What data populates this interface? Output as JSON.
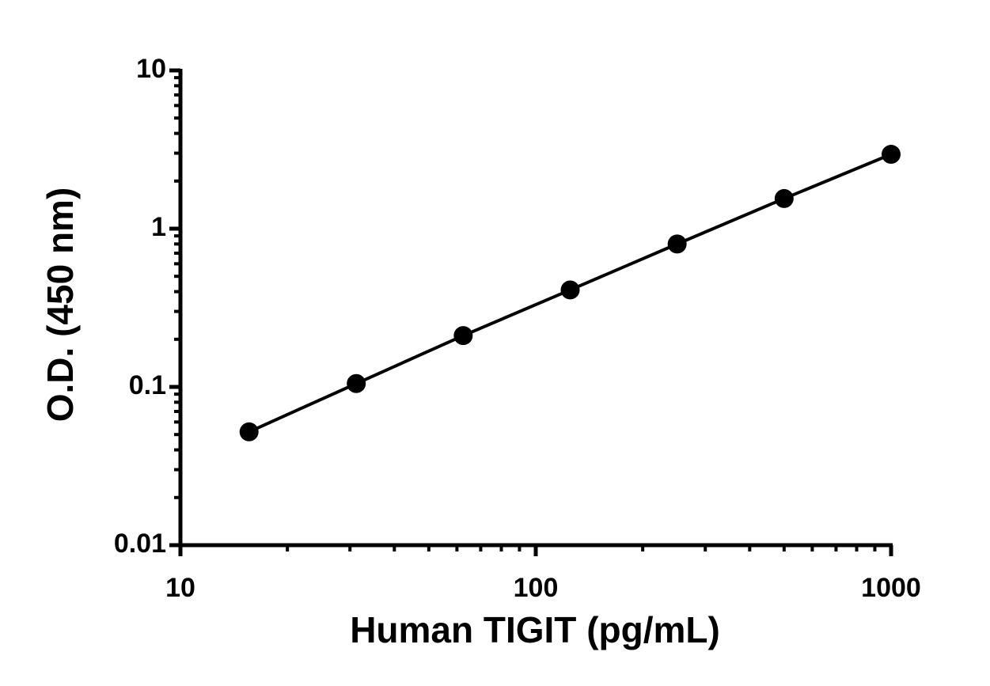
{
  "chart_data": {
    "type": "scatter",
    "x_label": "Human TIGIT (pg/mL)",
    "y_label": "O.D. (450 nm)",
    "x": [
      15.6,
      31.25,
      62.5,
      125,
      250,
      500,
      1000
    ],
    "values": [
      0.052,
      0.105,
      0.211,
      0.41,
      0.8,
      1.55,
      2.95
    ],
    "color": "#000000",
    "xscale": "log",
    "yscale": "log",
    "xlim": [
      10,
      1000
    ],
    "ylim": [
      0.01,
      10
    ],
    "xticks": [
      10,
      100,
      1000
    ],
    "yticks": [
      0.01,
      0.1,
      1,
      10
    ],
    "xminorticks": [
      20,
      30,
      40,
      50,
      60,
      70,
      80,
      90,
      200,
      300,
      400,
      500,
      600,
      700,
      800,
      900
    ],
    "yminorticks": [
      0.02,
      0.03,
      0.04,
      0.05,
      0.06,
      0.07,
      0.08,
      0.09,
      0.2,
      0.3,
      0.4,
      0.5,
      0.6,
      0.7,
      0.8,
      0.9,
      2,
      3,
      4,
      5,
      6,
      7,
      8,
      9
    ],
    "connect_points": true,
    "grid": false
  }
}
